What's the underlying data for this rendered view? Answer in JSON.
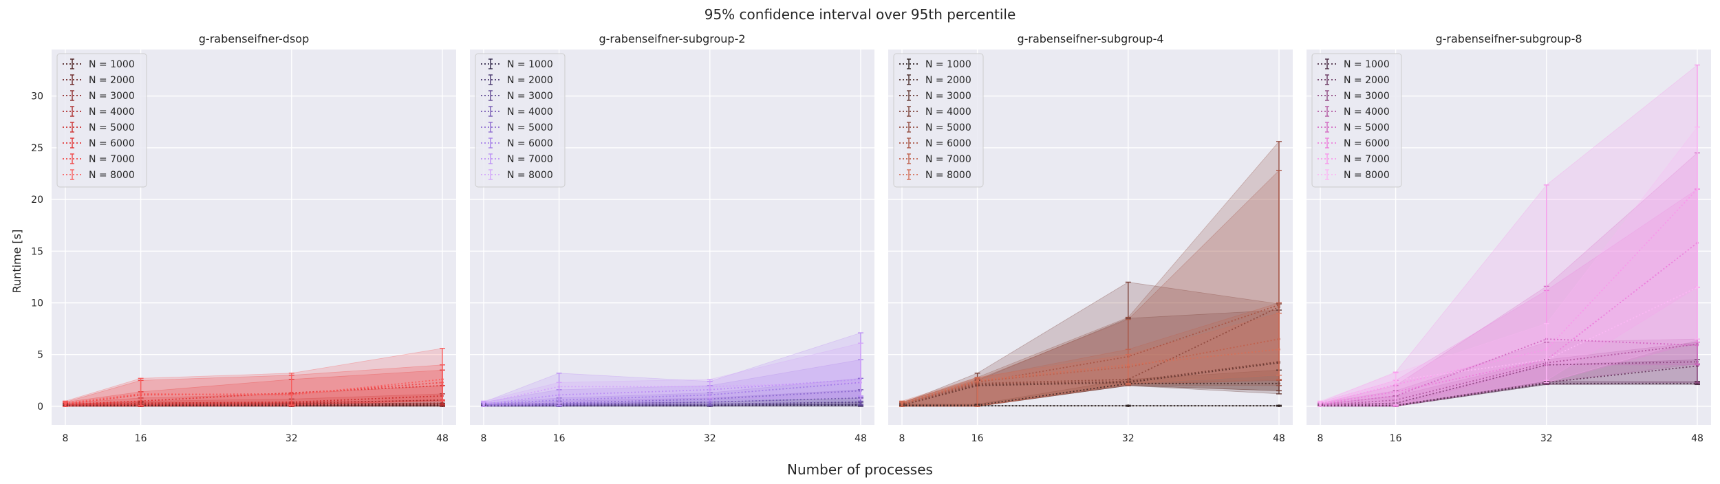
{
  "figure": {
    "title": "95% confidence interval over 95th percentile",
    "xlabel": "Number of processes",
    "ylabel": "Runtime [s]"
  },
  "chart_data": [
    {
      "type": "line",
      "title": "g-rabenseifner-dsop",
      "x": [
        8,
        16,
        32,
        48
      ],
      "xticks": [
        8,
        16,
        32,
        48
      ],
      "yticks": [
        0,
        5,
        10,
        15,
        20,
        25,
        30
      ],
      "ylim": [
        -1.8,
        34.5
      ],
      "grid": true,
      "legend_position": "top-left",
      "series": [
        {
          "name": "N = 1000",
          "color": "#4a1f1f",
          "values": [
            0.05,
            0.05,
            0.05,
            0.05
          ],
          "lower": [
            0.0,
            0.0,
            0.0,
            0.0
          ],
          "upper": [
            0.1,
            0.1,
            0.1,
            0.1
          ]
        },
        {
          "name": "N = 2000",
          "color": "#6b2424",
          "values": [
            0.1,
            0.1,
            0.15,
            0.15
          ],
          "lower": [
            0.0,
            0.0,
            0.0,
            0.0
          ],
          "upper": [
            0.2,
            0.2,
            0.3,
            0.3
          ]
        },
        {
          "name": "N = 3000",
          "color": "#8c2a2a",
          "values": [
            0.1,
            0.2,
            0.2,
            0.3
          ],
          "lower": [
            0.0,
            0.0,
            0.0,
            0.0
          ],
          "upper": [
            0.2,
            0.4,
            0.4,
            0.6
          ]
        },
        {
          "name": "N = 4000",
          "color": "#ad2d2d",
          "values": [
            0.1,
            0.2,
            0.3,
            0.6
          ],
          "lower": [
            0.0,
            0.0,
            0.0,
            0.1
          ],
          "upper": [
            0.2,
            0.5,
            0.7,
            1.2
          ]
        },
        {
          "name": "N = 5000",
          "color": "#cc3030",
          "values": [
            0.15,
            0.3,
            0.4,
            1.0
          ],
          "lower": [
            0.0,
            0.0,
            0.0,
            0.2
          ],
          "upper": [
            0.3,
            0.8,
            1.2,
            2.0
          ]
        },
        {
          "name": "N = 6000",
          "color": "#e23535",
          "values": [
            0.2,
            0.5,
            1.3,
            2.0
          ],
          "lower": [
            0.0,
            0.0,
            0.2,
            0.5
          ],
          "upper": [
            0.4,
            1.4,
            2.6,
            3.5
          ]
        },
        {
          "name": "N = 7000",
          "color": "#f04545",
          "values": [
            0.2,
            1.1,
            1.2,
            2.3
          ],
          "lower": [
            0.0,
            0.1,
            0.1,
            0.6
          ],
          "upper": [
            0.4,
            2.5,
            3.0,
            4.0
          ]
        },
        {
          "name": "N = 8000",
          "color": "#f86060",
          "values": [
            0.3,
            1.2,
            1.1,
            2.6
          ],
          "lower": [
            0.0,
            0.1,
            0.1,
            0.5
          ],
          "upper": [
            0.5,
            2.7,
            3.2,
            5.6
          ]
        }
      ]
    },
    {
      "type": "line",
      "title": "g-rabenseifner-subgroup-2",
      "x": [
        8,
        16,
        32,
        48
      ],
      "xticks": [
        8,
        16,
        32,
        48
      ],
      "yticks": [
        0,
        5,
        10,
        15,
        20,
        25,
        30
      ],
      "ylim": [
        -1.8,
        34.5
      ],
      "grid": true,
      "legend_position": "top-left",
      "series": [
        {
          "name": "N = 1000",
          "color": "#2f2447",
          "values": [
            0.05,
            0.05,
            0.05,
            0.1
          ],
          "lower": [
            0.0,
            0.0,
            0.0,
            0.0
          ],
          "upper": [
            0.1,
            0.1,
            0.1,
            0.2
          ]
        },
        {
          "name": "N = 2000",
          "color": "#45336b",
          "values": [
            0.1,
            0.1,
            0.1,
            0.2
          ],
          "lower": [
            0.0,
            0.0,
            0.0,
            0.0
          ],
          "upper": [
            0.2,
            0.2,
            0.2,
            0.4
          ]
        },
        {
          "name": "N = 3000",
          "color": "#5d4590",
          "values": [
            0.1,
            0.1,
            0.2,
            0.4
          ],
          "lower": [
            0.0,
            0.0,
            0.0,
            0.1
          ],
          "upper": [
            0.2,
            0.3,
            0.4,
            0.8
          ]
        },
        {
          "name": "N = 4000",
          "color": "#7558b3",
          "values": [
            0.1,
            0.2,
            0.4,
            0.8
          ],
          "lower": [
            0.0,
            0.0,
            0.1,
            0.2
          ],
          "upper": [
            0.2,
            0.5,
            0.8,
            1.6
          ]
        },
        {
          "name": "N = 5000",
          "color": "#8c6ad0",
          "values": [
            0.15,
            0.3,
            0.7,
            1.5
          ],
          "lower": [
            0.0,
            0.0,
            0.2,
            0.5
          ],
          "upper": [
            0.3,
            0.8,
            1.3,
            2.7
          ]
        },
        {
          "name": "N = 6000",
          "color": "#a47de8",
          "values": [
            0.2,
            0.6,
            1.1,
            2.3
          ],
          "lower": [
            0.0,
            0.1,
            0.4,
            0.9
          ],
          "upper": [
            0.4,
            1.6,
            2.0,
            4.5
          ]
        },
        {
          "name": "N = 7000",
          "color": "#bc90f5",
          "values": [
            0.2,
            1.1,
            1.6,
            2.6
          ],
          "lower": [
            0.0,
            0.1,
            0.6,
            1.0
          ],
          "upper": [
            0.4,
            3.2,
            2.4,
            7.1
          ]
        },
        {
          "name": "N = 8000",
          "color": "#d3a6fa",
          "values": [
            0.3,
            1.9,
            1.9,
            2.3
          ],
          "lower": [
            0.0,
            0.3,
            0.8,
            0.7
          ],
          "upper": [
            0.5,
            2.3,
            2.6,
            6.1
          ]
        }
      ]
    },
    {
      "type": "line",
      "title": "g-rabenseifner-subgroup-4",
      "x": [
        8,
        16,
        32,
        48
      ],
      "xticks": [
        8,
        16,
        32,
        48
      ],
      "yticks": [
        0,
        5,
        10,
        15,
        20,
        25,
        30
      ],
      "ylim": [
        -1.8,
        34.5
      ],
      "grid": true,
      "legend_position": "top-left",
      "series": [
        {
          "name": "N = 1000",
          "color": "#2e2222",
          "values": [
            0.05,
            0.05,
            0.05,
            0.05
          ],
          "lower": [
            0.0,
            0.0,
            0.0,
            0.0
          ],
          "upper": [
            0.1,
            0.1,
            0.1,
            0.1
          ]
        },
        {
          "name": "N = 2000",
          "color": "#4a2e2b",
          "values": [
            0.1,
            0.1,
            2.2,
            2.2
          ],
          "lower": [
            0.0,
            0.0,
            2.0,
            1.5
          ],
          "upper": [
            0.2,
            0.2,
            2.6,
            3.5
          ]
        },
        {
          "name": "N = 3000",
          "color": "#633833",
          "values": [
            0.1,
            2.0,
            2.3,
            4.2
          ],
          "lower": [
            0.0,
            0.0,
            2.0,
            1.2
          ],
          "upper": [
            0.2,
            2.5,
            8.5,
            9.3
          ]
        },
        {
          "name": "N = 4000",
          "color": "#7c4239",
          "values": [
            0.1,
            2.1,
            2.4,
            4.3
          ],
          "lower": [
            0.0,
            0.0,
            2.0,
            1.5
          ],
          "upper": [
            0.3,
            3.2,
            12.0,
            9.9
          ]
        },
        {
          "name": "N = 5000",
          "color": "#934c40",
          "values": [
            0.15,
            2.2,
            2.6,
            9.6
          ],
          "lower": [
            0.0,
            0.0,
            2.0,
            2.0
          ],
          "upper": [
            0.3,
            2.8,
            8.6,
            25.6
          ]
        },
        {
          "name": "N = 6000",
          "color": "#aa5747",
          "values": [
            0.2,
            2.3,
            4.8,
            9.8
          ],
          "lower": [
            0.0,
            0.0,
            2.1,
            2.5
          ],
          "upper": [
            0.4,
            2.6,
            8.4,
            22.8
          ]
        },
        {
          "name": "N = 7000",
          "color": "#c0624e",
          "values": [
            0.2,
            2.4,
            3.8,
            6.5
          ],
          "lower": [
            0.0,
            0.0,
            2.1,
            2.6
          ],
          "upper": [
            0.4,
            2.7,
            5.5,
            10.0
          ]
        },
        {
          "name": "N = 8000",
          "color": "#d47059",
          "values": [
            0.3,
            2.5,
            4.0,
            5.5
          ],
          "lower": [
            0.0,
            0.0,
            2.2,
            3.0
          ],
          "upper": [
            0.5,
            2.8,
            5.0,
            9.0
          ]
        }
      ]
    },
    {
      "type": "line",
      "title": "g-rabenseifner-subgroup-8",
      "x": [
        8,
        16,
        32,
        48
      ],
      "xticks": [
        8,
        16,
        32,
        48
      ],
      "yticks": [
        0,
        5,
        10,
        15,
        20,
        25,
        30
      ],
      "ylim": [
        -1.8,
        34.5
      ],
      "grid": true,
      "legend_position": "top-left",
      "series": [
        {
          "name": "N = 1000",
          "color": "#4a2c44",
          "values": [
            0.05,
            0.05,
            2.2,
            2.2
          ],
          "lower": [
            0.0,
            0.0,
            2.1,
            2.1
          ],
          "upper": [
            0.1,
            0.1,
            2.4,
            2.4
          ]
        },
        {
          "name": "N = 2000",
          "color": "#6b3a62",
          "values": [
            0.1,
            0.1,
            2.3,
            3.9
          ],
          "lower": [
            0.0,
            0.0,
            2.1,
            2.2
          ],
          "upper": [
            0.2,
            0.3,
            4.0,
            4.5
          ]
        },
        {
          "name": "N = 3000",
          "color": "#8f4a83",
          "values": [
            0.1,
            0.3,
            4.0,
            4.3
          ],
          "lower": [
            0.0,
            0.0,
            2.2,
            2.3
          ],
          "upper": [
            0.2,
            1.0,
            4.5,
            6.2
          ]
        },
        {
          "name": "N = 4000",
          "color": "#b35aa3",
          "values": [
            0.1,
            0.6,
            4.2,
            6.0
          ],
          "lower": [
            0.0,
            0.0,
            2.3,
            4.1
          ],
          "upper": [
            0.3,
            1.5,
            6.2,
            6.5
          ]
        },
        {
          "name": "N = 5000",
          "color": "#d36bc3",
          "values": [
            0.15,
            1.0,
            6.5,
            5.9
          ],
          "lower": [
            0.0,
            0.0,
            4.0,
            4.0
          ],
          "upper": [
            0.3,
            2.0,
            11.6,
            24.5
          ]
        },
        {
          "name": "N = 6000",
          "color": "#ec7fdc",
          "values": [
            0.2,
            1.4,
            4.5,
            15.8
          ],
          "lower": [
            0.0,
            0.0,
            2.3,
            6.2
          ],
          "upper": [
            0.4,
            2.5,
            11.2,
            21.0
          ]
        },
        {
          "name": "N = 7000",
          "color": "#f79aeb",
          "values": [
            0.2,
            2.1,
            5.5,
            21.0
          ],
          "lower": [
            0.0,
            0.1,
            2.5,
            11.5
          ],
          "upper": [
            0.4,
            3.3,
            21.4,
            33.0
          ]
        },
        {
          "name": "N = 8000",
          "color": "#fbb8f4",
          "values": [
            0.3,
            2.5,
            4.5,
            11.5
          ],
          "lower": [
            0.0,
            0.2,
            2.3,
            6.5
          ],
          "upper": [
            0.5,
            3.2,
            8.0,
            27.0
          ]
        }
      ]
    }
  ]
}
